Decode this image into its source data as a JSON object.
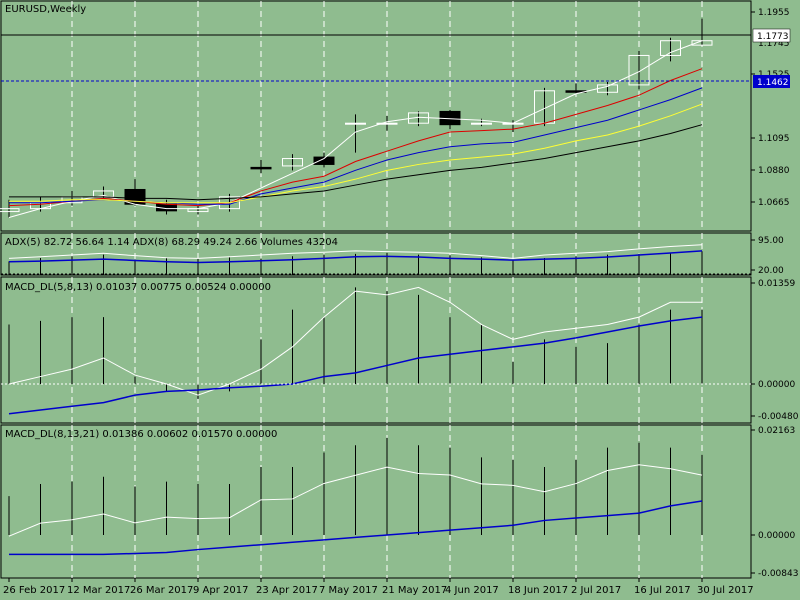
{
  "window": {
    "title": "EURUSD,Weekly"
  },
  "colors": {
    "background": "#8fbc8f",
    "bull_candle": "#ffffff",
    "bear_candle": "#000000",
    "ma_fast": "#ffffff",
    "ma_red": "#dd0000",
    "ma_blue": "#0000cc",
    "ma_yellow": "#ffff33",
    "ma_black": "#000000",
    "price_tag_bg": "#ffffff",
    "current_tag_bg": "#0000cc"
  },
  "price_axis": {
    "ticks": [
      "1.1955",
      "1.1745",
      "1.1525",
      "1.1095",
      "1.0880",
      "1.0665"
    ],
    "current_price": "1.1773",
    "level_price": "1.1462"
  },
  "indicators": {
    "adx": {
      "label": "ADX(5) 82.72 56.64 1.14 ADX(8) 68.29 49.24 2.66 Volumes 43204",
      "ticks": [
        "95.00",
        "20.00"
      ]
    },
    "macd1": {
      "label": "MACD_DL(5,8,13) 0.01037 0.00775 0.00524 0.00000",
      "ticks": [
        "0.01359",
        "0.00000",
        "-0.00480"
      ]
    },
    "macd2": {
      "label": "MACD_DL(8,13,21) 0.01386 0.00602 0.01570 0.00000",
      "ticks": [
        "0.02163",
        "0.00000",
        "-0.00843"
      ]
    }
  },
  "time_axis": {
    "labels": [
      "26 Feb 2017",
      "12 Mar 2017",
      "26 Mar 2017",
      "9 Apr 2017",
      "23 Apr 2017",
      "7 May 2017",
      "21 May 2017",
      "4 Jun 2017",
      "18 Jun 2017",
      "2 Jul 2017",
      "16 Jul 2017",
      "30 Jul 2017"
    ]
  },
  "chart_data": {
    "type": "candlestick",
    "symbol": "EURUSD",
    "timeframe": "Weekly",
    "candles": [
      {
        "o": 1.06,
        "h": 1.068,
        "l": 1.056,
        "c": 1.062
      },
      {
        "o": 1.062,
        "h": 1.07,
        "l": 1.06,
        "c": 1.066
      },
      {
        "o": 1.066,
        "h": 1.074,
        "l": 1.064,
        "c": 1.07
      },
      {
        "o": 1.07,
        "h": 1.077,
        "l": 1.069,
        "c": 1.074
      },
      {
        "o": 1.075,
        "h": 1.082,
        "l": 1.064,
        "c": 1.065
      },
      {
        "o": 1.065,
        "h": 1.068,
        "l": 1.058,
        "c": 1.0605
      },
      {
        "o": 1.06,
        "h": 1.064,
        "l": 1.058,
        "c": 1.062
      },
      {
        "o": 1.062,
        "h": 1.072,
        "l": 1.06,
        "c": 1.07
      },
      {
        "o": 1.09,
        "h": 1.095,
        "l": 1.086,
        "c": 1.089
      },
      {
        "o": 1.091,
        "h": 1.099,
        "l": 1.088,
        "c": 1.096
      },
      {
        "o": 1.097,
        "h": 1.1,
        "l": 1.09,
        "c": 1.092
      },
      {
        "o": 1.12,
        "h": 1.126,
        "l": 1.1,
        "c": 1.12
      },
      {
        "o": 1.12,
        "h": 1.125,
        "l": 1.115,
        "c": 1.12
      },
      {
        "o": 1.12,
        "h": 1.128,
        "l": 1.118,
        "c": 1.127
      },
      {
        "o": 1.128,
        "h": 1.129,
        "l": 1.116,
        "c": 1.119
      },
      {
        "o": 1.12,
        "h": 1.123,
        "l": 1.118,
        "c": 1.12
      },
      {
        "o": 1.12,
        "h": 1.122,
        "l": 1.114,
        "c": 1.12
      },
      {
        "o": 1.12,
        "h": 1.144,
        "l": 1.118,
        "c": 1.142
      },
      {
        "o": 1.142,
        "h": 1.147,
        "l": 1.14,
        "c": 1.141
      },
      {
        "o": 1.141,
        "h": 1.148,
        "l": 1.139,
        "c": 1.146
      },
      {
        "o": 1.146,
        "h": 1.169,
        "l": 1.143,
        "c": 1.166
      },
      {
        "o": 1.166,
        "h": 1.178,
        "l": 1.162,
        "c": 1.176
      },
      {
        "o": 1.173,
        "h": 1.191,
        "l": 1.173,
        "c": 1.176
      }
    ],
    "moving_averages": [
      {
        "name": "ma-white",
        "color": "#ffffff",
        "values": [
          1.056,
          1.062,
          1.067,
          1.071,
          1.065,
          1.062,
          1.062,
          1.066,
          1.076,
          1.086,
          1.096,
          1.114,
          1.121,
          1.124,
          1.123,
          1.122,
          1.12,
          1.13,
          1.14,
          1.145,
          1.155,
          1.168,
          1.176
        ]
      },
      {
        "name": "ma-red",
        "color": "#dd0000",
        "values": [
          1.064,
          1.065,
          1.067,
          1.069,
          1.067,
          1.065,
          1.064,
          1.066,
          1.074,
          1.08,
          1.084,
          1.094,
          1.101,
          1.108,
          1.114,
          1.115,
          1.116,
          1.12,
          1.126,
          1.132,
          1.139,
          1.149,
          1.157
        ]
      },
      {
        "name": "ma-blue",
        "color": "#0000cc",
        "values": [
          1.066,
          1.066,
          1.067,
          1.068,
          1.067,
          1.066,
          1.065,
          1.065,
          1.072,
          1.076,
          1.08,
          1.088,
          1.095,
          1.1,
          1.104,
          1.106,
          1.107,
          1.112,
          1.117,
          1.122,
          1.129,
          1.136,
          1.144
        ]
      },
      {
        "name": "ma-yellow",
        "color": "#ffff33",
        "values": [
          1.067,
          1.067,
          1.068,
          1.068,
          1.067,
          1.066,
          1.066,
          1.066,
          1.07,
          1.074,
          1.077,
          1.082,
          1.088,
          1.092,
          1.095,
          1.097,
          1.099,
          1.103,
          1.108,
          1.112,
          1.118,
          1.125,
          1.133
        ]
      },
      {
        "name": "ma-black",
        "color": "#000000",
        "values": [
          1.07,
          1.07,
          1.07,
          1.07,
          1.069,
          1.069,
          1.068,
          1.069,
          1.07,
          1.072,
          1.074,
          1.078,
          1.082,
          1.085,
          1.088,
          1.09,
          1.093,
          1.096,
          1.1,
          1.104,
          1.108,
          1.113,
          1.119
        ]
      }
    ],
    "adx": {
      "white": [
        40,
        45,
        50,
        55,
        48,
        42,
        40,
        45,
        50,
        55,
        58,
        62,
        60,
        58,
        55,
        48,
        40,
        50,
        55,
        60,
        68,
        75,
        80
      ],
      "blue": [
        30,
        32,
        35,
        38,
        34,
        30,
        28,
        30,
        33,
        36,
        40,
        45,
        46,
        44,
        40,
        38,
        35,
        38,
        40,
        44,
        50,
        56,
        62
      ],
      "volumes": [
        40,
        50,
        55,
        60,
        45,
        50,
        48,
        52,
        48,
        55,
        60,
        62,
        65,
        60,
        58,
        52,
        45,
        50,
        55,
        60,
        62,
        65,
        70
      ]
    },
    "macd1": {
      "histogram": [
        0.008,
        0.0085,
        0.009,
        0.009,
        0.001,
        -0.001,
        -0.002,
        -0.001,
        0.006,
        0.01,
        0.009,
        0.013,
        0.0125,
        0.012,
        0.009,
        0.008,
        0.003,
        0.006,
        0.005,
        0.0055,
        0.008,
        0.01,
        0.01
      ],
      "signal": [
        -0.004,
        -0.0035,
        -0.003,
        -0.0025,
        -0.0015,
        -0.001,
        -0.0008,
        -0.0005,
        -0.0003,
        0.0,
        0.001,
        0.0015,
        0.0025,
        0.0035,
        0.004,
        0.0045,
        0.005,
        0.0055,
        0.0062,
        0.007,
        0.0078,
        0.0085,
        0.009
      ],
      "main": [
        0.0,
        0.001,
        0.002,
        0.0035,
        0.0012,
        0.0,
        -0.0015,
        0.0,
        0.002,
        0.005,
        0.009,
        0.0125,
        0.012,
        0.013,
        0.011,
        0.008,
        0.006,
        0.007,
        0.0075,
        0.008,
        0.009,
        0.011,
        0.011
      ]
    },
    "macd2": {
      "histogram": [
        0.008,
        0.0105,
        0.011,
        0.012,
        0.01,
        0.011,
        0.0105,
        0.0105,
        0.014,
        0.014,
        0.017,
        0.0185,
        0.02,
        0.0185,
        0.018,
        0.016,
        0.0155,
        0.014,
        0.0155,
        0.018,
        0.019,
        0.018,
        0.0165
      ],
      "signal": [
        -0.004,
        -0.004,
        -0.004,
        -0.004,
        -0.0038,
        -0.0036,
        -0.003,
        -0.0025,
        -0.002,
        -0.0015,
        -0.001,
        -0.0005,
        0.0,
        0.0005,
        0.001,
        0.0015,
        0.002,
        0.003,
        0.0035,
        0.004,
        0.0045,
        0.006,
        0.007
      ]
    }
  }
}
